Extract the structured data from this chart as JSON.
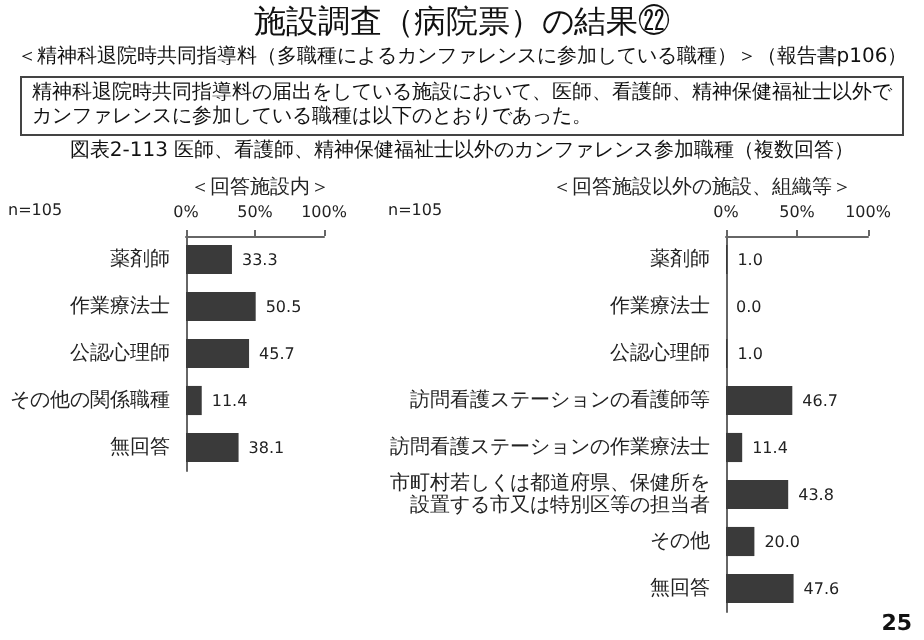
{
  "chart_data": [
    {
      "type": "bar",
      "orientation": "horizontal",
      "title": "施設調査（病院票）の結果㉒",
      "subtitle": "＜精神科退院時共同指導料（多職種によるカンファレンスに参加している職種）＞（報告書p106）",
      "annotations": [
        "精神科退院時共同指導料の届出をしている施設において、医師、看護師、精神保健福祉士以外でカンファレンスに参加している職種は以下のとおりであった。",
        "図表2-113 医師、看護師、精神保健福祉士以外のカンファレンス参加職種（複数回答）",
        "＜回答施設内＞",
        "n=105",
        "25"
      ],
      "categories": [
        "薬剤師",
        "作業療法士",
        "公認心理師",
        "その他の関係職種",
        "無回答"
      ],
      "values": [
        33.3,
        50.5,
        45.7,
        11.4,
        38.1
      ],
      "value_labels": [
        "33.3",
        "50.5",
        "45.7",
        "11.4",
        "38.1"
      ],
      "color": "#3a3a3a",
      "xlim": [
        0,
        100
      ],
      "xticks": [
        {
          "value": 0,
          "label": "0%"
        },
        {
          "value": 50,
          "label": "50%"
        },
        {
          "value": 100,
          "label": "100%"
        }
      ],
      "grid": false
    },
    {
      "type": "bar",
      "orientation": "horizontal",
      "title": "＜回答施設以外の施設、組織等＞",
      "annotations": [
        "n=105"
      ],
      "categories": [
        "薬剤師",
        "作業療法士",
        "公認心理師",
        "訪問看護ステーションの看護師等",
        "訪問看護ステーションの作業療法士",
        "市町村若しくは都道府県、保健所を設置する市又は特別区等の担当者",
        "その他",
        "無回答"
      ],
      "values": [
        1.0,
        0.0,
        1.0,
        46.7,
        11.4,
        43.8,
        20.0,
        47.6
      ],
      "value_labels": [
        "1.0",
        "0.0",
        "1.0",
        "46.7",
        "11.4",
        "43.8",
        "20.0",
        "47.6"
      ],
      "color": "#3a3a3a",
      "xlim": [
        0,
        100
      ],
      "xticks": [
        {
          "value": 0,
          "label": "0%"
        },
        {
          "value": 50,
          "label": "50%"
        },
        {
          "value": 100,
          "label": "100%"
        }
      ],
      "grid": false
    }
  ]
}
